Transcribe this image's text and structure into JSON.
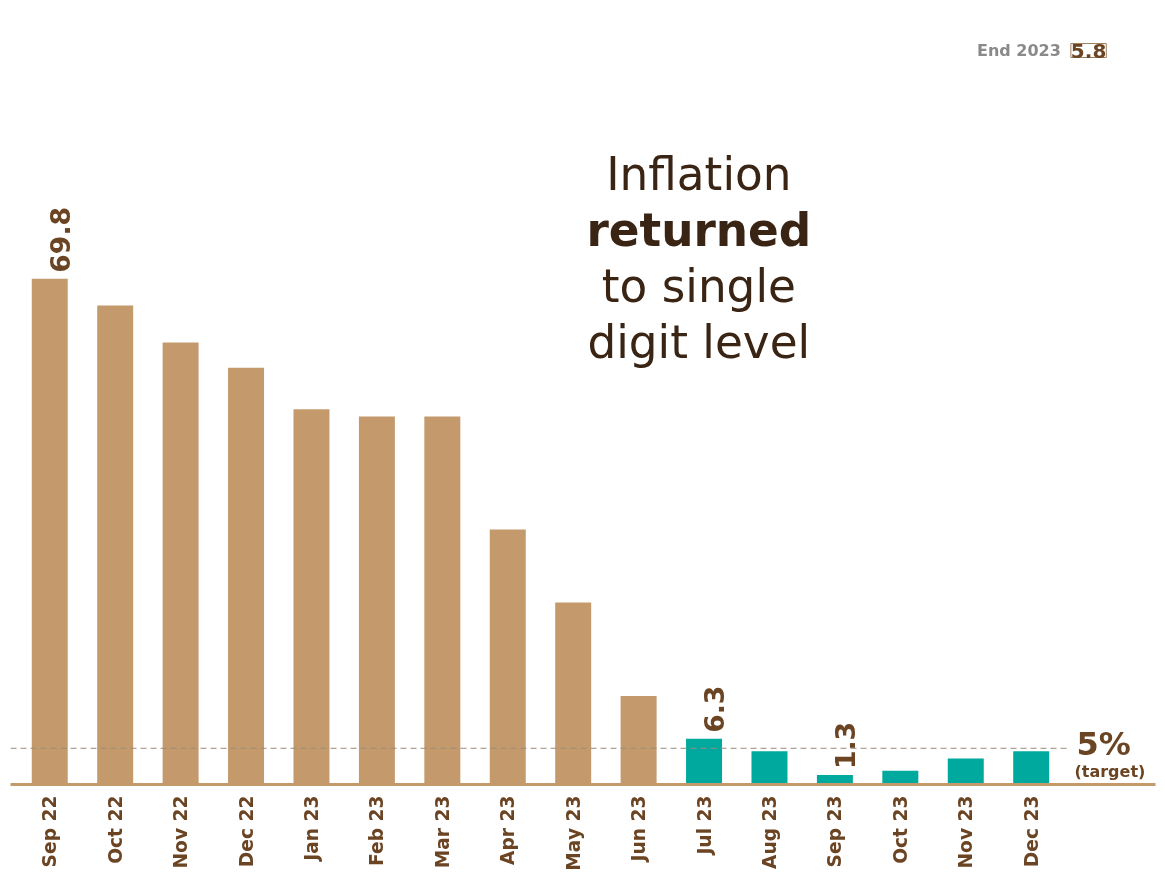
{
  "chart_data": {
    "type": "bar",
    "categories": [
      "Sep 22",
      "Oct 22",
      "Nov 22",
      "Dec 22",
      "Jan 23",
      "Feb 23",
      "Mar 23",
      "Apr 23",
      "May 23",
      "Jun 23",
      "Jul 23",
      "Aug 23",
      "Sep 23",
      "Oct 23",
      "Nov 23",
      "Dec 23"
    ],
    "values": [
      69.8,
      66.1,
      61.0,
      57.5,
      51.8,
      50.8,
      50.8,
      35.2,
      25.1,
      12.2,
      6.3,
      4.6,
      1.3,
      1.9,
      3.6,
      4.6
    ],
    "colors": [
      "#c49a6c",
      "#c49a6c",
      "#c49a6c",
      "#c49a6c",
      "#c49a6c",
      "#c49a6c",
      "#c49a6c",
      "#c49a6c",
      "#c49a6c",
      "#c49a6c",
      "#00a99d",
      "#00a99d",
      "#00a99d",
      "#00a99d",
      "#00a99d",
      "#00a99d"
    ],
    "value_labels": [
      "69.8",
      null,
      null,
      null,
      null,
      null,
      null,
      null,
      null,
      null,
      "6.3",
      null,
      "1.3",
      null,
      null,
      null
    ],
    "ref_lines": [
      {
        "axis": "y",
        "value": 5,
        "label": "5% (target)",
        "color": "#9a8a7a",
        "line_style": "dashed"
      }
    ],
    "annotations": [
      "Inflation\nreturned\nto single\ndigit level",
      "End 2023",
      "5.8"
    ],
    "grid": false
  }
}
